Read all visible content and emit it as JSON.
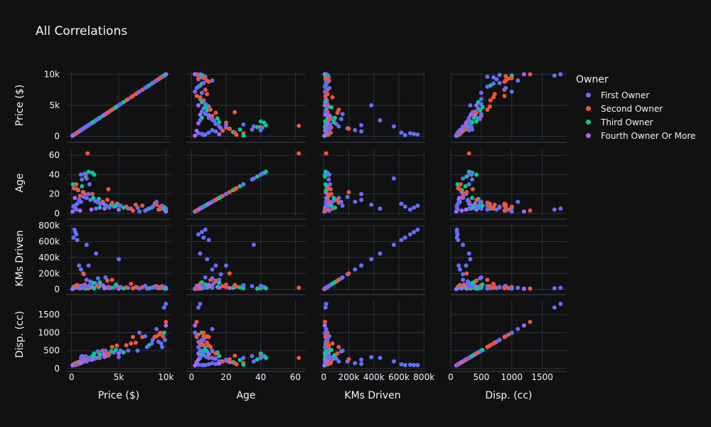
{
  "chart_data": {
    "type": "scatter",
    "title": "All Correlations",
    "legend": {
      "title": "Owner",
      "placement": "top-right"
    },
    "series": [
      {
        "name": "First Owner",
        "color": "#636efa"
      },
      {
        "name": "Second Owner",
        "color": "#EF553B"
      },
      {
        "name": "Third Owner",
        "color": "#00cc96"
      },
      {
        "name": "Fourth Owner Or More",
        "color": "#ab63fa"
      }
    ],
    "dimensions": [
      {
        "label": "Price ($)",
        "range": [
          -500,
          10500
        ],
        "ticks": [
          0,
          5000,
          10000
        ],
        "tick_labels": [
          "0",
          "5k",
          "10k"
        ]
      },
      {
        "label": "Age",
        "range": [
          -3,
          66
        ],
        "ticks": [
          0,
          20,
          40,
          60
        ],
        "tick_labels": [
          "0",
          "20",
          "40",
          "60"
        ]
      },
      {
        "label": "KMs Driven",
        "range": [
          -30000,
          810000
        ],
        "ticks": [
          0,
          200000,
          400000,
          600000,
          800000
        ],
        "tick_labels": [
          "0",
          "200k",
          "400k",
          "600k",
          "800k"
        ]
      },
      {
        "label": "Disp. (cc)",
        "range": [
          0,
          1900
        ],
        "ticks": [
          0,
          500,
          1000,
          1500
        ],
        "tick_labels": [
          "0",
          "500",
          "1000",
          "1500"
        ]
      }
    ],
    "points": [
      [
        0,
        10000,
        5,
        20000,
        1800
      ],
      [
        0,
        9800,
        4,
        15000,
        1700
      ],
      [
        1,
        10000,
        3,
        10000,
        1300
      ],
      [
        0,
        9900,
        6,
        30000,
        800
      ],
      [
        3,
        10000,
        2,
        8000,
        1200
      ],
      [
        1,
        9700,
        7,
        25000,
        900
      ],
      [
        0,
        9500,
        5,
        18000,
        700
      ],
      [
        2,
        9800,
        6,
        12000,
        1000
      ],
      [
        0,
        9600,
        8,
        40000,
        600
      ],
      [
        1,
        9400,
        7,
        30000,
        1000
      ],
      [
        0,
        9200,
        4,
        16000,
        750
      ],
      [
        1,
        9000,
        9,
        42000,
        900
      ],
      [
        0,
        8500,
        6,
        20000,
        700
      ],
      [
        1,
        8800,
        10,
        35000,
        880
      ],
      [
        2,
        8200,
        5,
        15000,
        650
      ],
      [
        0,
        8000,
        4,
        10000,
        600
      ],
      [
        1,
        7500,
        8,
        28000,
        880
      ],
      [
        0,
        7000,
        6,
        22000,
        500
      ],
      [
        1,
        6800,
        9,
        30000,
        720
      ],
      [
        0,
        6000,
        5,
        18000,
        500
      ],
      [
        1,
        5800,
        7,
        25000,
        650
      ],
      [
        2,
        5500,
        6,
        12000,
        450
      ],
      [
        0,
        5200,
        8,
        30000,
        500
      ],
      [
        3,
        5000,
        4,
        9000,
        420
      ],
      [
        1,
        4800,
        10,
        40000,
        640
      ],
      [
        0,
        4500,
        7,
        24000,
        450
      ],
      [
        2,
        4200,
        9,
        20000,
        480
      ],
      [
        0,
        4000,
        6,
        15000,
        400
      ],
      [
        1,
        3900,
        25,
        30000,
        360
      ],
      [
        0,
        3700,
        8,
        22000,
        350
      ],
      [
        3,
        3500,
        5,
        12000,
        330
      ],
      [
        1,
        3300,
        12,
        50000,
        500
      ],
      [
        0,
        3000,
        10,
        60000,
        300
      ],
      [
        2,
        2900,
        15,
        30000,
        450
      ],
      [
        1,
        2700,
        12,
        45000,
        300
      ],
      [
        0,
        2500,
        13,
        80000,
        280
      ],
      [
        2,
        2400,
        40,
        12000,
        420
      ],
      [
        1,
        2200,
        20,
        30000,
        250
      ],
      [
        0,
        2000,
        14,
        100000,
        280
      ],
      [
        2,
        1800,
        43,
        15000,
        300
      ],
      [
        1,
        1700,
        62,
        20000,
        300
      ],
      [
        0,
        1600,
        16,
        120000,
        200
      ],
      [
        2,
        1500,
        38,
        10000,
        260
      ],
      [
        1,
        1400,
        20,
        60000,
        220
      ],
      [
        0,
        1300,
        17,
        190000,
        200
      ],
      [
        3,
        1200,
        22,
        18000,
        180
      ],
      [
        2,
        1100,
        28,
        25000,
        240
      ],
      [
        0,
        1000,
        12,
        250000,
        150
      ],
      [
        1,
        900,
        18,
        40000,
        200
      ],
      [
        0,
        800,
        14,
        300000,
        130
      ],
      [
        2,
        700,
        24,
        20000,
        180
      ],
      [
        0,
        600,
        10,
        620000,
        120
      ],
      [
        1,
        500,
        30,
        50000,
        160
      ],
      [
        0,
        400,
        6,
        720000,
        100
      ],
      [
        3,
        350,
        16,
        22000,
        140
      ],
      [
        0,
        300,
        8,
        750000,
        100
      ],
      [
        1,
        250,
        26,
        35000,
        120
      ],
      [
        0,
        200,
        7,
        650000,
        100
      ],
      [
        2,
        150,
        30,
        15000,
        110
      ],
      [
        3,
        100,
        2,
        5000,
        90
      ],
      [
        0,
        500,
        4,
        690000,
        110
      ],
      [
        1,
        600,
        25,
        55000,
        150
      ],
      [
        0,
        1800,
        20,
        300000,
        250
      ],
      [
        2,
        2200,
        42,
        28000,
        350
      ],
      [
        0,
        1100,
        35,
        40000,
        350
      ],
      [
        1,
        1500,
        40,
        36000,
        340
      ],
      [
        0,
        1600,
        36,
        560000,
        200
      ],
      [
        3,
        900,
        3,
        12000,
        180
      ],
      [
        0,
        9000,
        12,
        20000,
        1100
      ],
      [
        1,
        9300,
        4,
        15000,
        950
      ],
      [
        0,
        7800,
        3,
        45000,
        900
      ],
      [
        1,
        6300,
        5,
        70000,
        700
      ],
      [
        0,
        5000,
        9,
        380000,
        320
      ],
      [
        2,
        3000,
        6,
        90000,
        380
      ],
      [
        0,
        2600,
        5,
        450000,
        300
      ],
      [
        1,
        4300,
        11,
        120000,
        600
      ],
      [
        0,
        3600,
        8,
        150000,
        500
      ],
      [
        3,
        2100,
        4,
        30000,
        250
      ],
      [
        0,
        1900,
        30,
        50000,
        300
      ],
      [
        1,
        1250,
        22,
        200000,
        260
      ],
      [
        0,
        2800,
        12,
        140000,
        480
      ],
      [
        2,
        4700,
        8,
        60000,
        520
      ],
      [
        0,
        7200,
        2,
        10000,
        1000
      ],
      [
        1,
        6500,
        3,
        14000,
        880
      ],
      [
        0,
        8600,
        7,
        25000,
        800
      ],
      [
        3,
        3400,
        10,
        40000,
        400
      ],
      [
        0,
        1400,
        41,
        35000,
        340
      ],
      [
        2,
        2300,
        16,
        80000,
        350
      ],
      [
        0,
        1000,
        40,
        45000,
        300
      ],
      [
        1,
        3800,
        14,
        110000,
        420
      ]
    ]
  }
}
